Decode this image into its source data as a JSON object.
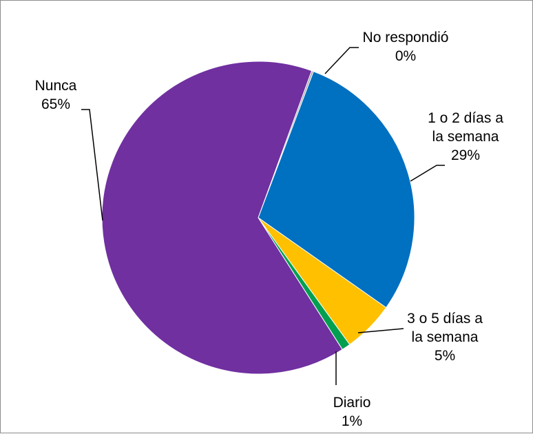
{
  "chart_data": {
    "type": "pie",
    "title": "",
    "slices": [
      {
        "label_lines": [
          "No respondió"
        ],
        "percent_text": "0%",
        "value": 0.2,
        "color": "#a5a5a5"
      },
      {
        "label_lines": [
          "1 o 2 días a",
          "la semana"
        ],
        "percent_text": "29%",
        "value": 29,
        "color": "#0070c0"
      },
      {
        "label_lines": [
          "3 o 5 días a",
          "la semana"
        ],
        "percent_text": "5%",
        "value": 5.3,
        "color": "#ffc000"
      },
      {
        "label_lines": [
          "Diario"
        ],
        "percent_text": "1%",
        "value": 0.9,
        "color": "#00a050"
      },
      {
        "label_lines": [
          "Nunca"
        ],
        "percent_text": "65%",
        "value": 64.6,
        "color": "#7030a0"
      }
    ],
    "legend": "none",
    "start_angle_deg": 20,
    "direction": "clockwise"
  }
}
